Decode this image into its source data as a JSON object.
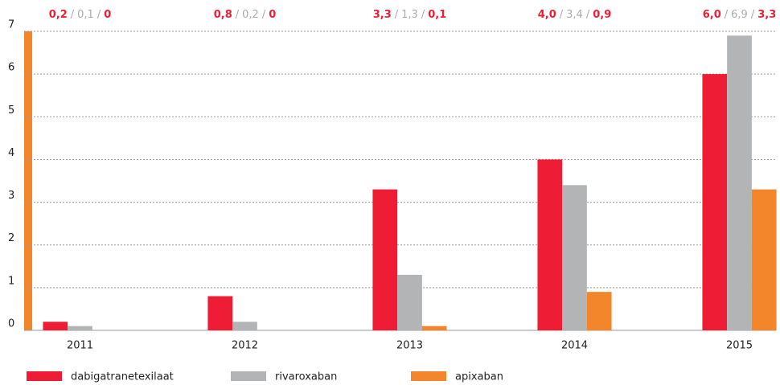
{
  "chart_data": {
    "type": "bar",
    "categories": [
      "2011",
      "2012",
      "2013",
      "2014",
      "2015"
    ],
    "series": [
      {
        "name": "dabigatranetexilaat",
        "color": "#ee1c35",
        "label_color": "#ee1c35",
        "values": [
          0.2,
          0.8,
          3.3,
          4.0,
          6.0
        ],
        "value_labels": [
          "0,2",
          "0,8",
          "3,3",
          "4,0",
          "6,0"
        ]
      },
      {
        "name": "rivaroxaban",
        "color": "#b3b4b6",
        "label_color": "#a9aaac",
        "values": [
          0.1,
          0.2,
          1.3,
          3.4,
          6.9
        ],
        "value_labels": [
          "0,1",
          "0,2",
          "1,3",
          "3,4",
          "6,9"
        ]
      },
      {
        "name": "apixaban",
        "color": "#f3862a",
        "label_color": "#ee1c35",
        "values": [
          0,
          0,
          0.1,
          0.9,
          3.3
        ],
        "value_labels": [
          "0",
          "0",
          "0,1",
          "0,9",
          "3,3"
        ]
      }
    ],
    "separator": "/",
    "ylim": [
      0,
      7
    ],
    "yticks": [
      0,
      1,
      2,
      3,
      4,
      5,
      6,
      7
    ],
    "grid": true
  }
}
